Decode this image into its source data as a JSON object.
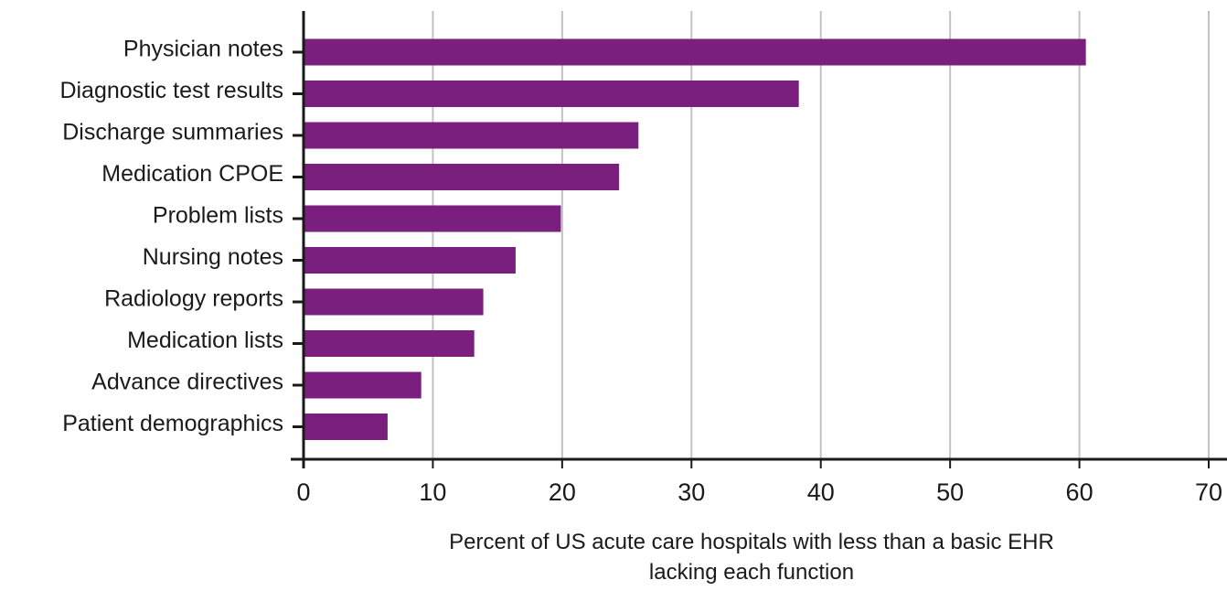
{
  "chart_data": {
    "type": "bar",
    "orientation": "horizontal",
    "categories": [
      "Physician notes",
      "Diagnostic test results",
      "Discharge summaries",
      "Medication CPOE",
      "Problem lists",
      "Nursing notes",
      "Radiology reports",
      "Medication lists",
      "Advance directives",
      "Patient demographics"
    ],
    "values": [
      60.5,
      38.3,
      25.9,
      24.4,
      19.9,
      16.4,
      13.9,
      13.2,
      9.1,
      6.5
    ],
    "xlim": [
      0,
      70
    ],
    "x_ticks": [
      "0",
      "10",
      "20",
      "30",
      "40",
      "50",
      "60",
      "70"
    ],
    "xlabel_lines": [
      "Percent of US acute care hospitals with less than a basic EHR",
      "lacking each function"
    ],
    "title": "",
    "ylabel": "",
    "grid": "vertical",
    "legend": "none",
    "colors": {
      "bar": "#7a1f7e",
      "grid": "#c2c2c2",
      "axis": "#1a1a1a"
    }
  }
}
